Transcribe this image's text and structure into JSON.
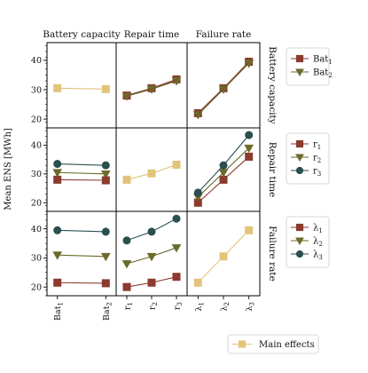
{
  "chart_data": {
    "type": "line",
    "ylabel": "Mean ENS [MWh]",
    "column_titles": [
      "Battery capacity",
      "Repair time",
      "Failure rate"
    ],
    "row_titles": [
      "Battery capacity",
      "Repair time",
      "Failure rate"
    ],
    "x_groups": [
      {
        "ticks": [
          "Bat",
          "Bat"
        ],
        "subs": [
          "1",
          "2"
        ]
      },
      {
        "ticks": [
          "r",
          "r",
          "r"
        ],
        "subs": [
          "1",
          "2",
          "3"
        ]
      },
      {
        "ticks": [
          "λ",
          "λ",
          "λ"
        ],
        "subs": [
          "1",
          "2",
          "3"
        ]
      }
    ],
    "rows": [
      {
        "ylim": [
          17,
          46
        ],
        "yticks": [
          "20",
          "30",
          "40"
        ]
      },
      {
        "ylim": [
          17,
          46
        ],
        "yticks": [
          "20",
          "30",
          "40"
        ]
      },
      {
        "ylim": [
          17,
          46
        ],
        "yticks": [
          "20",
          "30",
          "40"
        ]
      }
    ],
    "colors": {
      "level1": "#8b3a2e",
      "level2": "#6b6a2a",
      "level3": "#2a4f4f",
      "main": "#e2c479",
      "combined": "#75572a"
    },
    "panels": [
      {
        "row": 0,
        "col": 0,
        "series": [
          {
            "key": "main",
            "marker": "square",
            "values": [
              30.5,
              30.2
            ]
          }
        ]
      },
      {
        "row": 0,
        "col": 1,
        "series": [
          {
            "key": "level1",
            "marker": "square",
            "values": [
              28.0,
              30.5,
              33.5
            ]
          },
          {
            "key": "level2",
            "marker": "triangle",
            "values": [
              27.8,
              30.2,
              33.0
            ]
          },
          {
            "key": "combined",
            "marker": "none",
            "values": [
              27.9,
              30.3,
              33.2
            ]
          }
        ]
      },
      {
        "row": 0,
        "col": 2,
        "series": [
          {
            "key": "level1",
            "marker": "square",
            "values": [
              22.0,
              30.5,
              39.5
            ]
          },
          {
            "key": "level2",
            "marker": "triangle",
            "values": [
              21.5,
              30.2,
              39.0
            ]
          },
          {
            "key": "combined",
            "marker": "none",
            "values": [
              21.7,
              30.3,
              39.2
            ]
          }
        ]
      },
      {
        "row": 1,
        "col": 0,
        "series": [
          {
            "key": "level3",
            "marker": "circle",
            "values": [
              33.5,
              33.0
            ]
          },
          {
            "key": "level2",
            "marker": "triangle",
            "values": [
              30.5,
              30.0
            ]
          },
          {
            "key": "level1",
            "marker": "square",
            "values": [
              28.0,
              27.8
            ]
          }
        ]
      },
      {
        "row": 1,
        "col": 1,
        "series": [
          {
            "key": "main",
            "marker": "square",
            "values": [
              28.0,
              30.2,
              33.2
            ]
          }
        ]
      },
      {
        "row": 1,
        "col": 2,
        "series": [
          {
            "key": "level1",
            "marker": "square",
            "values": [
              20.0,
              28.0,
              36.0
            ]
          },
          {
            "key": "level2",
            "marker": "triangle",
            "values": [
              22.0,
              30.5,
              39.0
            ]
          },
          {
            "key": "level3",
            "marker": "circle",
            "values": [
              23.5,
              33.0,
              43.5
            ]
          }
        ]
      },
      {
        "row": 2,
        "col": 0,
        "series": [
          {
            "key": "level3",
            "marker": "circle",
            "values": [
              39.5,
              39.0
            ]
          },
          {
            "key": "level2",
            "marker": "triangle",
            "values": [
              31.0,
              30.5
            ]
          },
          {
            "key": "level1",
            "marker": "square",
            "values": [
              21.5,
              21.3
            ]
          }
        ]
      },
      {
        "row": 2,
        "col": 1,
        "series": [
          {
            "key": "level1",
            "marker": "square",
            "values": [
              20.0,
              21.5,
              23.5
            ]
          },
          {
            "key": "level2",
            "marker": "triangle",
            "values": [
              28.0,
              30.5,
              33.5
            ]
          },
          {
            "key": "level3",
            "marker": "circle",
            "values": [
              36.0,
              39.0,
              43.5
            ]
          }
        ]
      },
      {
        "row": 2,
        "col": 2,
        "series": [
          {
            "key": "main",
            "marker": "square",
            "values": [
              21.5,
              30.5,
              39.5
            ]
          }
        ]
      }
    ],
    "legends": [
      {
        "row": 0,
        "entries": [
          {
            "key": "level1",
            "marker": "square",
            "label": "Bat",
            "sub": "1"
          },
          {
            "key": "level2",
            "marker": "triangle",
            "label": "Bat",
            "sub": "2"
          }
        ]
      },
      {
        "row": 1,
        "entries": [
          {
            "key": "level1",
            "marker": "square",
            "label": "r",
            "sub": "1"
          },
          {
            "key": "level2",
            "marker": "triangle",
            "label": "r",
            "sub": "2"
          },
          {
            "key": "level3",
            "marker": "circle",
            "label": "r",
            "sub": "3"
          }
        ]
      },
      {
        "row": 2,
        "entries": [
          {
            "key": "level1",
            "marker": "square",
            "label": "λ",
            "sub": "1"
          },
          {
            "key": "level2",
            "marker": "triangle",
            "label": "λ",
            "sub": "2"
          },
          {
            "key": "level3",
            "marker": "circle",
            "label": "λ",
            "sub": "3"
          }
        ]
      }
    ],
    "bottom_legend": {
      "key": "main",
      "marker": "square",
      "label": "Main effects"
    }
  }
}
